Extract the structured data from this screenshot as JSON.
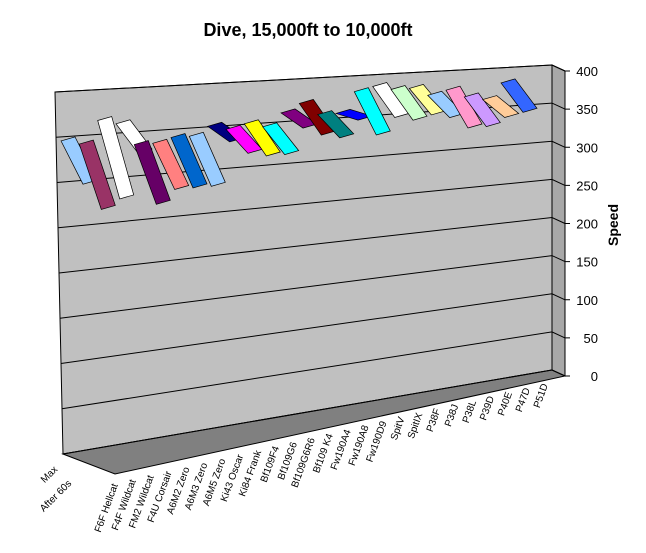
{
  "chart_data": {
    "type": "line",
    "title": "Dive, 15,000ft to 10,000ft",
    "ylabel": "Speed",
    "xlabel": "",
    "ylim": [
      0,
      400
    ],
    "y_ticks": [
      0,
      50,
      100,
      150,
      200,
      250,
      300,
      350,
      400
    ],
    "categories": [
      "Max",
      "After 60s"
    ],
    "legend": "none",
    "grid": true,
    "series": [
      {
        "name": "F6F Hellcat",
        "values": [
          345,
          295
        ],
        "color": "#99CCFF"
      },
      {
        "name": "F4F Wildcat",
        "values": [
          340,
          265
        ],
        "color": "#993366"
      },
      {
        "name": "FM2 Wildcat",
        "values": [
          365,
          275
        ],
        "color": "#FFFFFF"
      },
      {
        "name": "F4U Corsair",
        "values": [
          360,
          325
        ],
        "color": "#FFFFFF"
      },
      {
        "name": "A6M2 Zero",
        "values": [
          335,
          265
        ],
        "color": "#660066"
      },
      {
        "name": "A6M3 Zero",
        "values": [
          335,
          280
        ],
        "color": "#FF8080"
      },
      {
        "name": "A6M5 Zero",
        "values": [
          340,
          280
        ],
        "color": "#0066CC"
      },
      {
        "name": "Ki43 Oscar",
        "values": [
          340,
          280
        ],
        "color": "#99CCFF"
      },
      {
        "name": "Ki84 Frank",
        "values": [
          350,
          330
        ],
        "color": "#000080"
      },
      {
        "name": "Bf109F4",
        "values": [
          345,
          315
        ],
        "color": "#FF00FF"
      },
      {
        "name": "Bf109G6",
        "values": [
          350,
          310
        ],
        "color": "#FFFF00"
      },
      {
        "name": "Bf109G6R6",
        "values": [
          345,
          310
        ],
        "color": "#00FFFF"
      },
      {
        "name": "Bf109 K4",
        "values": [
          360,
          340
        ],
        "color": "#800080"
      },
      {
        "name": "Fw190A4",
        "values": [
          370,
          330
        ],
        "color": "#800000"
      },
      {
        "name": "Fw190A8",
        "values": [
          355,
          325
        ],
        "color": "#008080"
      },
      {
        "name": "Fw190D9",
        "values": [
          355,
          345
        ],
        "color": "#0000FF"
      },
      {
        "name": "SpitV",
        "values": [
          380,
          325
        ],
        "color": "#00FFFF"
      },
      {
        "name": "SpitIX",
        "values": [
          385,
          345
        ],
        "color": "#FFFFFF"
      },
      {
        "name": "P38F",
        "values": [
          380,
          340
        ],
        "color": "#CCFFCC"
      },
      {
        "name": "P38J",
        "values": [
          380,
          345
        ],
        "color": "#FFFF99"
      },
      {
        "name": "P38L",
        "values": [
          370,
          340
        ],
        "color": "#99CCFF"
      },
      {
        "name": "P39D",
        "values": [
          375,
          325
        ],
        "color": "#FF99CC"
      },
      {
        "name": "P40E",
        "values": [
          365,
          325
        ],
        "color": "#CC99FF"
      },
      {
        "name": "P47D",
        "values": [
          360,
          335
        ],
        "color": "#FFCC99"
      },
      {
        "name": "P51D",
        "values": [
          380,
          340
        ],
        "color": "#3366FF"
      }
    ]
  }
}
